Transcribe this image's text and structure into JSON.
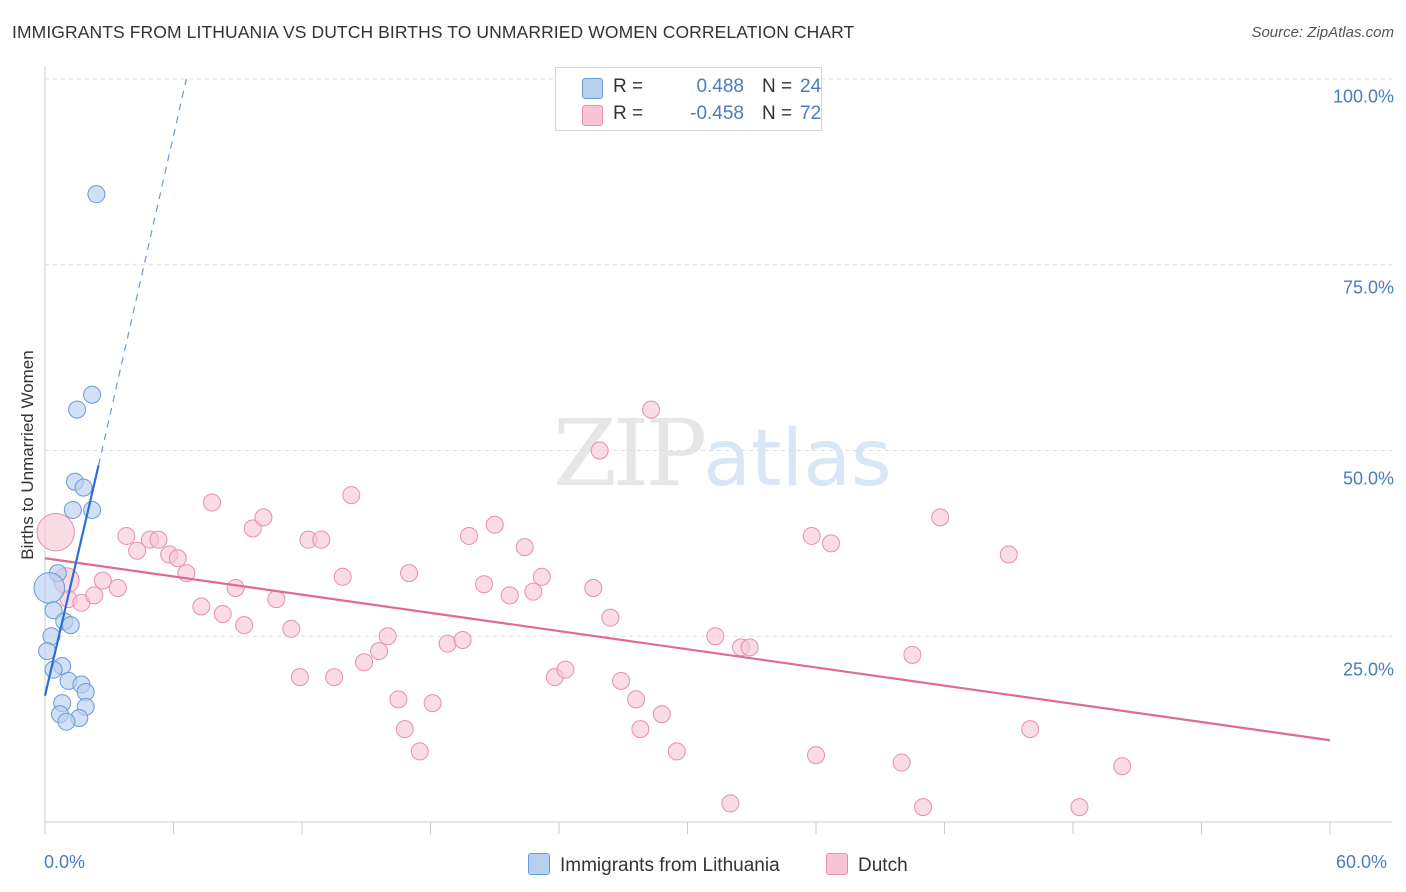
{
  "title": "IMMIGRANTS FROM LITHUANIA VS DUTCH BIRTHS TO UNMARRIED WOMEN CORRELATION CHART",
  "source": "Source: ZipAtlas.com",
  "watermark": {
    "zip": "ZIP",
    "atlas": "atlas"
  },
  "colors": {
    "blue_fill": "#b8d0f0",
    "blue_stroke": "#6a9ad6",
    "blue_line": "#2e6fd0",
    "pink_fill": "#f6c4d4",
    "pink_stroke": "#e88fad",
    "pink_line": "#e06a94",
    "tick_text": "#4a7dc0"
  },
  "legend": {
    "rows": [
      {
        "r_label": "R =",
        "r_value": "0.488",
        "n_label": "N =",
        "n_value": "24"
      },
      {
        "r_label": "R =",
        "r_value": "-0.458",
        "n_label": "N =",
        "n_value": "72"
      }
    ]
  },
  "bottom_legend": {
    "series1": "Immigrants from Lithuania",
    "series2": "Dutch"
  },
  "chart_data": {
    "type": "scatter",
    "title": "IMMIGRANTS FROM LITHUANIA VS DUTCH BIRTHS TO UNMARRIED WOMEN CORRELATION CHART",
    "xlabel": "",
    "ylabel": "Births to Unmarried Women",
    "xlim": [
      0,
      60
    ],
    "ylim": [
      0,
      100
    ],
    "x_tick_labels": [
      "0.0%",
      "60.0%"
    ],
    "y_tick_labels": [
      "25.0%",
      "50.0%",
      "75.0%",
      "100.0%"
    ],
    "y_tick_values": [
      25,
      50,
      75,
      100
    ],
    "series": [
      {
        "name": "Immigrants from Lithuania",
        "R": 0.488,
        "N": 24,
        "trend": {
          "x1": 0.0,
          "y1": 17.0,
          "x2": 2.5,
          "y2": 48.0,
          "dash_to_x": 6.6,
          "dash_to_y": 100
        },
        "points": [
          {
            "x": 2.4,
            "y": 84.5,
            "s": 1
          },
          {
            "x": 2.2,
            "y": 57.5,
            "s": 1
          },
          {
            "x": 1.5,
            "y": 55.5,
            "s": 1
          },
          {
            "x": 1.4,
            "y": 45.8,
            "s": 1
          },
          {
            "x": 1.8,
            "y": 45.0,
            "s": 1
          },
          {
            "x": 1.3,
            "y": 42.0,
            "s": 1
          },
          {
            "x": 2.2,
            "y": 42.0,
            "s": 1
          },
          {
            "x": 0.6,
            "y": 33.5,
            "s": 1
          },
          {
            "x": 0.2,
            "y": 31.5,
            "s": 1.8
          },
          {
            "x": 0.4,
            "y": 28.5,
            "s": 1
          },
          {
            "x": 0.9,
            "y": 27.0,
            "s": 1
          },
          {
            "x": 1.2,
            "y": 26.5,
            "s": 1
          },
          {
            "x": 0.3,
            "y": 25.0,
            "s": 1
          },
          {
            "x": 0.1,
            "y": 23.0,
            "s": 1
          },
          {
            "x": 0.8,
            "y": 21.0,
            "s": 1
          },
          {
            "x": 0.4,
            "y": 20.5,
            "s": 1
          },
          {
            "x": 1.1,
            "y": 19.0,
            "s": 1
          },
          {
            "x": 1.7,
            "y": 18.5,
            "s": 1
          },
          {
            "x": 1.9,
            "y": 17.5,
            "s": 1
          },
          {
            "x": 0.8,
            "y": 16.0,
            "s": 1
          },
          {
            "x": 1.9,
            "y": 15.5,
            "s": 1
          },
          {
            "x": 0.7,
            "y": 14.5,
            "s": 1
          },
          {
            "x": 1.6,
            "y": 14.0,
            "s": 1
          },
          {
            "x": 1.0,
            "y": 13.5,
            "s": 1
          }
        ]
      },
      {
        "name": "Dutch",
        "R": -0.458,
        "N": 72,
        "trend": {
          "x1": 0.0,
          "y1": 35.5,
          "x2": 60.0,
          "y2": 11.0
        },
        "points": [
          {
            "x": 0.5,
            "y": 39.0,
            "s": 2.2
          },
          {
            "x": 1.0,
            "y": 32.5,
            "s": 1.5
          },
          {
            "x": 1.1,
            "y": 30.0,
            "s": 1
          },
          {
            "x": 1.7,
            "y": 29.5,
            "s": 1
          },
          {
            "x": 2.3,
            "y": 30.5,
            "s": 1
          },
          {
            "x": 2.7,
            "y": 32.5,
            "s": 1
          },
          {
            "x": 3.4,
            "y": 31.5,
            "s": 1
          },
          {
            "x": 3.8,
            "y": 38.5,
            "s": 1
          },
          {
            "x": 4.3,
            "y": 36.5,
            "s": 1
          },
          {
            "x": 4.9,
            "y": 38.0,
            "s": 1
          },
          {
            "x": 5.3,
            "y": 38.0,
            "s": 1
          },
          {
            "x": 5.8,
            "y": 36.0,
            "s": 1
          },
          {
            "x": 6.2,
            "y": 35.5,
            "s": 1
          },
          {
            "x": 6.6,
            "y": 33.5,
            "s": 1
          },
          {
            "x": 7.3,
            "y": 29.0,
            "s": 1
          },
          {
            "x": 7.8,
            "y": 43.0,
            "s": 1
          },
          {
            "x": 8.3,
            "y": 28.0,
            "s": 1
          },
          {
            "x": 8.9,
            "y": 31.5,
            "s": 1
          },
          {
            "x": 9.3,
            "y": 26.5,
            "s": 1
          },
          {
            "x": 9.7,
            "y": 39.5,
            "s": 1
          },
          {
            "x": 10.2,
            "y": 41.0,
            "s": 1
          },
          {
            "x": 10.8,
            "y": 30.0,
            "s": 1
          },
          {
            "x": 11.5,
            "y": 26.0,
            "s": 1
          },
          {
            "x": 11.9,
            "y": 19.5,
            "s": 1
          },
          {
            "x": 12.3,
            "y": 38.0,
            "s": 1
          },
          {
            "x": 12.9,
            "y": 38.0,
            "s": 1
          },
          {
            "x": 13.5,
            "y": 19.5,
            "s": 1
          },
          {
            "x": 13.9,
            "y": 33.0,
            "s": 1
          },
          {
            "x": 14.3,
            "y": 44.0,
            "s": 1
          },
          {
            "x": 14.9,
            "y": 21.5,
            "s": 1
          },
          {
            "x": 15.6,
            "y": 23.0,
            "s": 1
          },
          {
            "x": 16.0,
            "y": 25.0,
            "s": 1
          },
          {
            "x": 16.5,
            "y": 16.5,
            "s": 1
          },
          {
            "x": 16.8,
            "y": 12.5,
            "s": 1
          },
          {
            "x": 17.0,
            "y": 33.5,
            "s": 1
          },
          {
            "x": 17.5,
            "y": 9.5,
            "s": 1
          },
          {
            "x": 18.1,
            "y": 16.0,
            "s": 1
          },
          {
            "x": 18.8,
            "y": 24.0,
            "s": 1
          },
          {
            "x": 19.5,
            "y": 24.5,
            "s": 1
          },
          {
            "x": 19.8,
            "y": 38.5,
            "s": 1
          },
          {
            "x": 20.5,
            "y": 32.0,
            "s": 1
          },
          {
            "x": 21.0,
            "y": 40.0,
            "s": 1
          },
          {
            "x": 21.7,
            "y": 30.5,
            "s": 1
          },
          {
            "x": 22.4,
            "y": 37.0,
            "s": 1
          },
          {
            "x": 22.8,
            "y": 31.0,
            "s": 1
          },
          {
            "x": 23.2,
            "y": 33.0,
            "s": 1
          },
          {
            "x": 23.8,
            "y": 19.5,
            "s": 1
          },
          {
            "x": 24.3,
            "y": 20.5,
            "s": 1
          },
          {
            "x": 25.6,
            "y": 31.5,
            "s": 1
          },
          {
            "x": 26.4,
            "y": 27.5,
            "s": 1
          },
          {
            "x": 25.9,
            "y": 50.0,
            "s": 1
          },
          {
            "x": 26.9,
            "y": 19.0,
            "s": 1
          },
          {
            "x": 27.6,
            "y": 16.5,
            "s": 1
          },
          {
            "x": 27.8,
            "y": 12.5,
            "s": 1
          },
          {
            "x": 28.3,
            "y": 55.5,
            "s": 1
          },
          {
            "x": 28.8,
            "y": 14.5,
            "s": 1
          },
          {
            "x": 29.5,
            "y": 9.5,
            "s": 1
          },
          {
            "x": 31.3,
            "y": 25.0,
            "s": 1
          },
          {
            "x": 32.0,
            "y": 2.5,
            "s": 1
          },
          {
            "x": 32.5,
            "y": 23.5,
            "s": 1
          },
          {
            "x": 32.9,
            "y": 23.5,
            "s": 1
          },
          {
            "x": 35.8,
            "y": 38.5,
            "s": 1
          },
          {
            "x": 36.0,
            "y": 9.0,
            "s": 1
          },
          {
            "x": 36.7,
            "y": 37.5,
            "s": 1
          },
          {
            "x": 40.0,
            "y": 8.0,
            "s": 1
          },
          {
            "x": 40.5,
            "y": 22.5,
            "s": 1
          },
          {
            "x": 41.0,
            "y": 2.0,
            "s": 1
          },
          {
            "x": 41.8,
            "y": 41.0,
            "s": 1
          },
          {
            "x": 45.0,
            "y": 36.0,
            "s": 1
          },
          {
            "x": 46.0,
            "y": 12.5,
            "s": 1
          },
          {
            "x": 48.3,
            "y": 2.0,
            "s": 1
          },
          {
            "x": 50.3,
            "y": 7.5,
            "s": 1
          }
        ]
      }
    ]
  }
}
